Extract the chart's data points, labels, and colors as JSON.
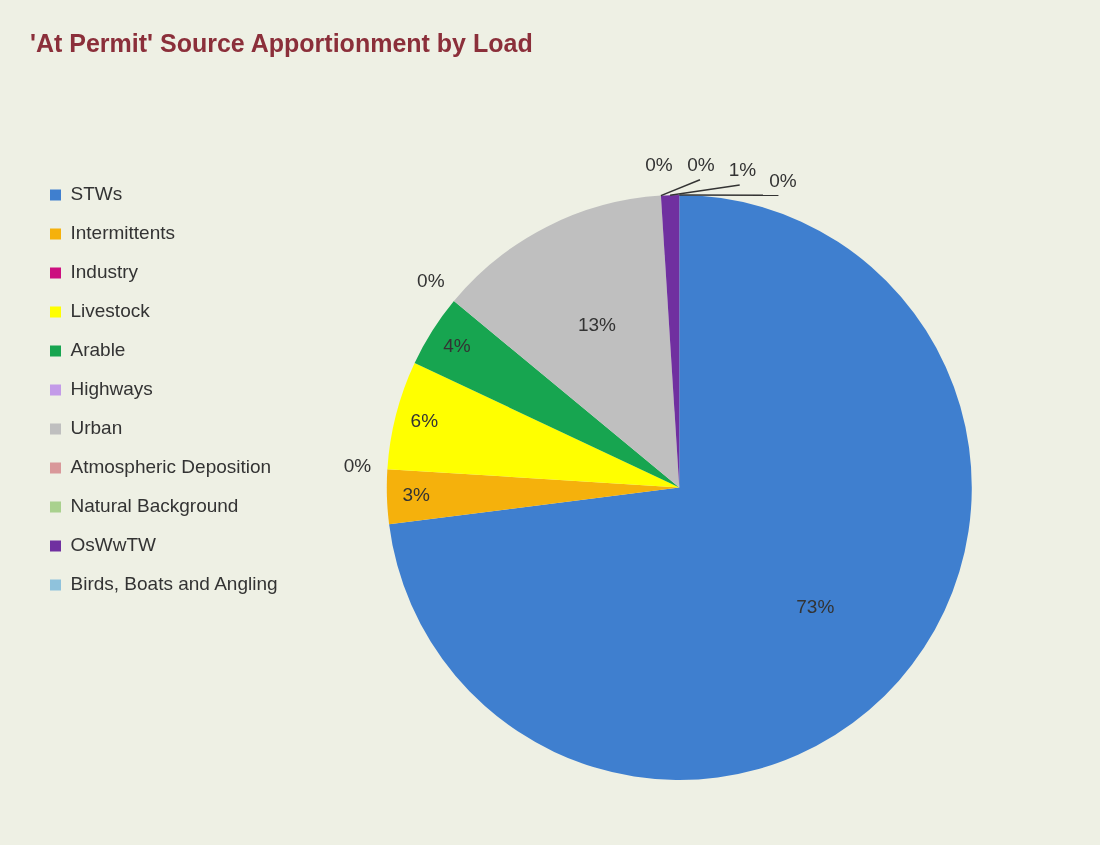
{
  "chart_data": {
    "type": "pie",
    "title": "'At Permit' Source Apportionment by Load",
    "categories": [
      "STWs",
      "Intermittents",
      "Industry",
      "Livestock",
      "Arable",
      "Highways",
      "Urban",
      "Atmospheric Deposition",
      "Natural Background",
      "OsWwTW",
      "Birds, Boats and Angling"
    ],
    "values": [
      73,
      3,
      0,
      6,
      4,
      0,
      13,
      0,
      0,
      1,
      0
    ],
    "colors": [
      "#3f7fcf",
      "#f5b10c",
      "#cc0f7f",
      "#ffff00",
      "#17a550",
      "#c39be8",
      "#bfbfbf",
      "#d9989a",
      "#a9d18e",
      "#7030a0",
      "#8fc2dc"
    ],
    "value_labels": [
      "73%",
      "3%",
      "0%",
      "6%",
      "4%",
      "0%",
      "13%",
      "0%",
      "0%",
      "1%",
      "0%"
    ],
    "legend": "left"
  }
}
